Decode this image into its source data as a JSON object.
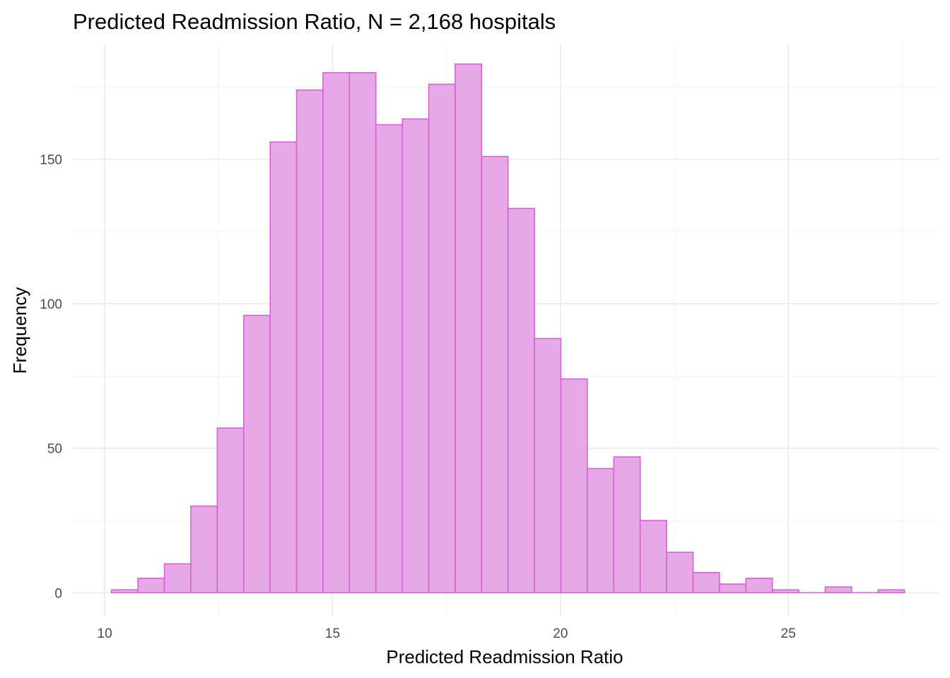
{
  "chart_data": {
    "type": "bar",
    "subtype": "histogram",
    "title": "Predicted Readmission Ratio, N = 2,168 hospitals",
    "xlabel": "Predicted Readmission Ratio",
    "ylabel": "Frequency",
    "xlim": [
      9.3,
      28.3
    ],
    "ylim": [
      -8,
      190
    ],
    "xticks": [
      10,
      15,
      20,
      25
    ],
    "yticks": [
      0,
      50,
      100,
      150
    ],
    "grid": true,
    "legend": "none",
    "bin_start": 10.15,
    "bin_width": 0.58,
    "values": [
      1,
      5,
      10,
      30,
      57,
      96,
      156,
      174,
      180,
      180,
      162,
      164,
      176,
      183,
      151,
      133,
      88,
      74,
      43,
      47,
      25,
      14,
      7,
      3,
      5,
      1,
      0,
      2,
      0,
      1
    ],
    "colors": {
      "fill": "#e6a8e6",
      "outline": "#d662d6"
    }
  }
}
